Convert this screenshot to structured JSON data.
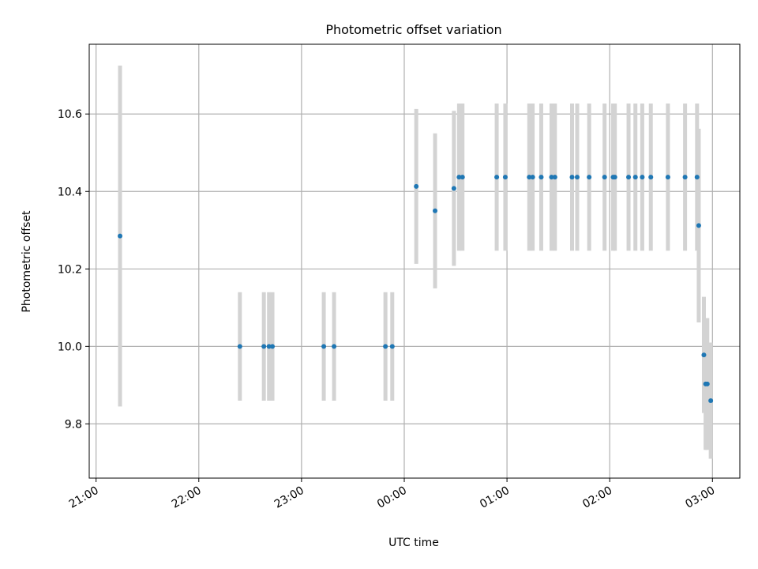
{
  "chart_data": {
    "type": "scatter",
    "title": "Photometric offset variation",
    "xlabel": "UTC time",
    "ylabel": "Photometric offset",
    "x_axis_type": "time",
    "xlim": [
      "20:56",
      "03:16"
    ],
    "ylim": [
      9.66,
      10.78
    ],
    "x_ticks": [
      "21:00",
      "22:00",
      "23:00",
      "00:00",
      "01:00",
      "02:00",
      "03:00"
    ],
    "y_ticks": [
      "9.8",
      "10.0",
      "10.2",
      "10.4",
      "10.6"
    ],
    "grid": true,
    "colors": {
      "marker": "#1f77b4",
      "errorbar": "#d3d3d3",
      "grid": "#b0b0b0"
    },
    "points": [
      {
        "t": "21:14",
        "y": 10.285,
        "yerr": 0.44
      },
      {
        "t": "22:24",
        "y": 10.0,
        "yerr": 0.14
      },
      {
        "t": "22:38",
        "y": 10.0,
        "yerr": 0.14
      },
      {
        "t": "22:41",
        "y": 10.0,
        "yerr": 0.14
      },
      {
        "t": "22:43",
        "y": 10.0,
        "yerr": 0.14
      },
      {
        "t": "23:13",
        "y": 10.0,
        "yerr": 0.14
      },
      {
        "t": "23:19",
        "y": 10.0,
        "yerr": 0.14
      },
      {
        "t": "23:49",
        "y": 10.0,
        "yerr": 0.14
      },
      {
        "t": "23:53",
        "y": 10.0,
        "yerr": 0.14
      },
      {
        "t": "00:07",
        "y": 10.413,
        "yerr": 0.2
      },
      {
        "t": "00:18",
        "y": 10.35,
        "yerr": 0.2
      },
      {
        "t": "00:29",
        "y": 10.408,
        "yerr": 0.2
      },
      {
        "t": "00:32",
        "y": 10.437,
        "yerr": 0.19
      },
      {
        "t": "00:34",
        "y": 10.437,
        "yerr": 0.19
      },
      {
        "t": "00:54",
        "y": 10.437,
        "yerr": 0.19
      },
      {
        "t": "00:59",
        "y": 10.437,
        "yerr": 0.19
      },
      {
        "t": "01:13",
        "y": 10.437,
        "yerr": 0.19
      },
      {
        "t": "01:15",
        "y": 10.437,
        "yerr": 0.19
      },
      {
        "t": "01:20",
        "y": 10.437,
        "yerr": 0.19
      },
      {
        "t": "01:26",
        "y": 10.437,
        "yerr": 0.19
      },
      {
        "t": "01:28",
        "y": 10.437,
        "yerr": 0.19
      },
      {
        "t": "01:38",
        "y": 10.437,
        "yerr": 0.19
      },
      {
        "t": "01:41",
        "y": 10.437,
        "yerr": 0.19
      },
      {
        "t": "01:48",
        "y": 10.437,
        "yerr": 0.19
      },
      {
        "t": "01:57",
        "y": 10.437,
        "yerr": 0.19
      },
      {
        "t": "02:02",
        "y": 10.437,
        "yerr": 0.19
      },
      {
        "t": "02:03",
        "y": 10.437,
        "yerr": 0.19
      },
      {
        "t": "02:11",
        "y": 10.437,
        "yerr": 0.19
      },
      {
        "t": "02:15",
        "y": 10.437,
        "yerr": 0.19
      },
      {
        "t": "02:19",
        "y": 10.437,
        "yerr": 0.19
      },
      {
        "t": "02:24",
        "y": 10.437,
        "yerr": 0.19
      },
      {
        "t": "02:34",
        "y": 10.437,
        "yerr": 0.19
      },
      {
        "t": "02:44",
        "y": 10.437,
        "yerr": 0.19
      },
      {
        "t": "02:51",
        "y": 10.437,
        "yerr": 0.19
      },
      {
        "t": "02:52",
        "y": 10.312,
        "yerr": 0.25
      },
      {
        "t": "02:55",
        "y": 9.978,
        "yerr": 0.15
      },
      {
        "t": "02:56",
        "y": 9.903,
        "yerr": 0.17
      },
      {
        "t": "02:57",
        "y": 9.903,
        "yerr": 0.17
      },
      {
        "t": "02:59",
        "y": 9.86,
        "yerr": 0.15
      }
    ]
  }
}
